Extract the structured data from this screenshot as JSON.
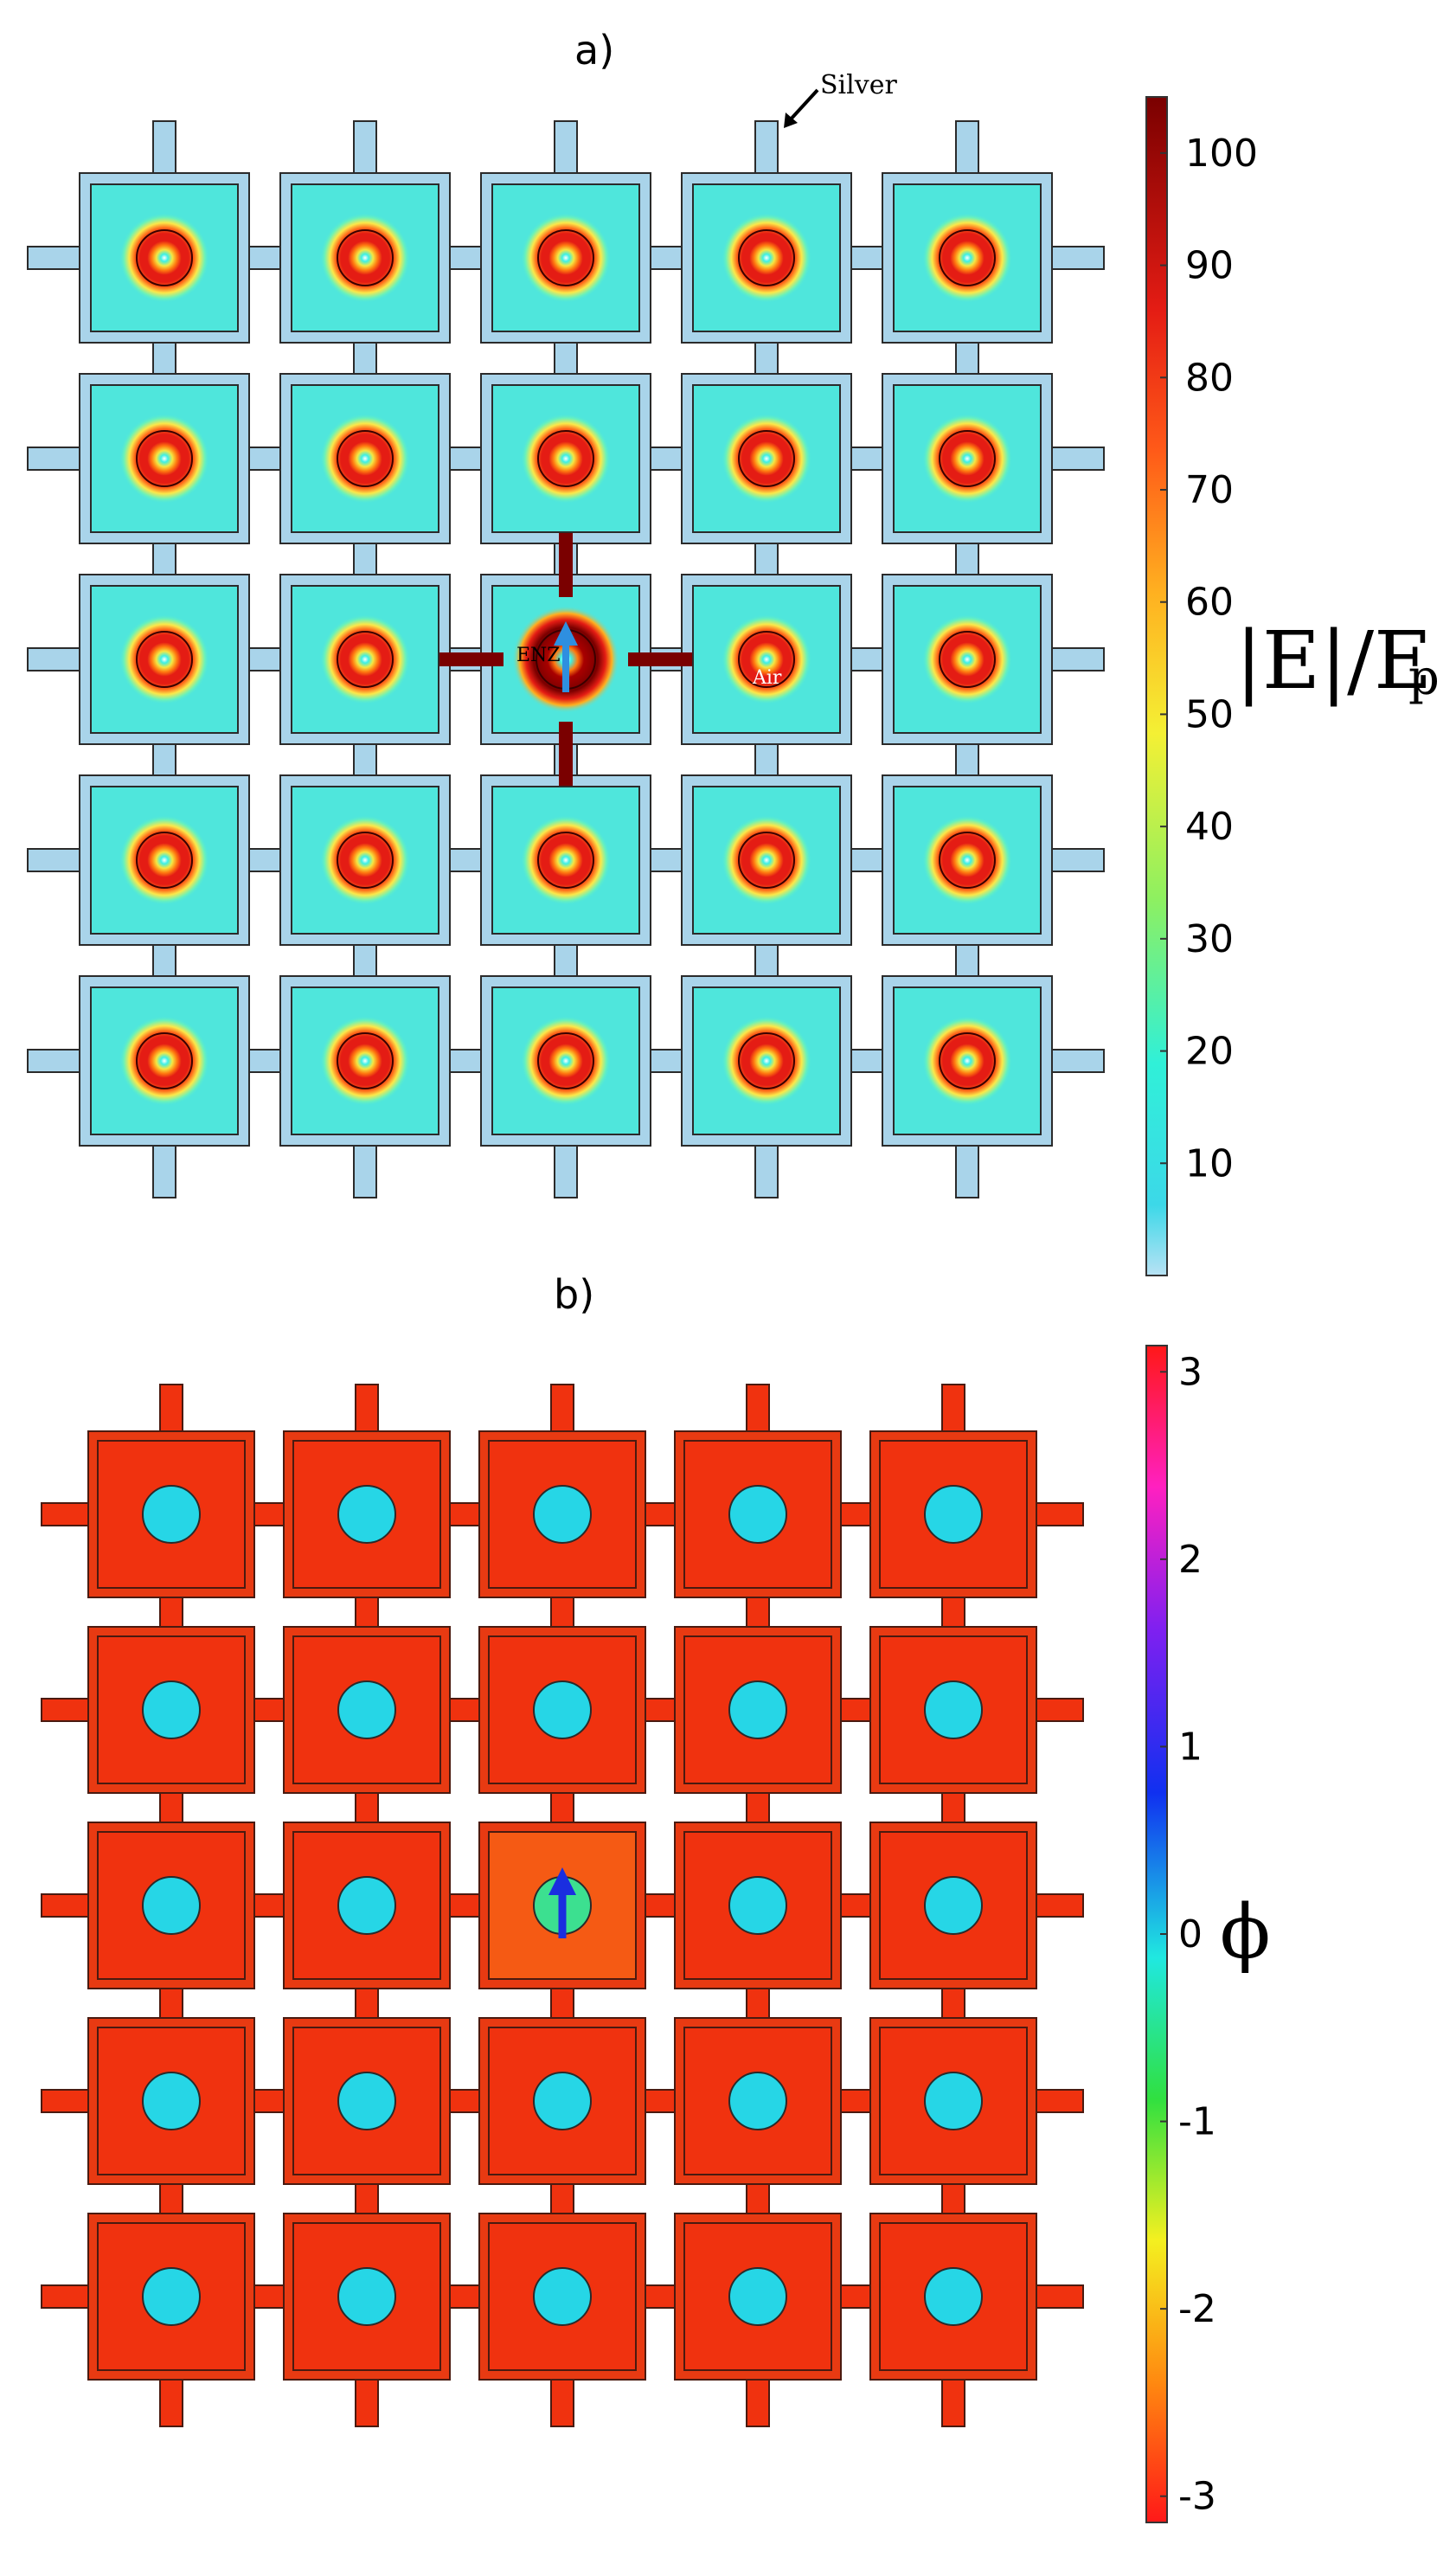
{
  "panel_a": {
    "label": "a)",
    "annotations": {
      "silver": "Silver",
      "enz": "ENZ",
      "air": "Air"
    },
    "colorbar": {
      "ticks": [
        "10",
        "20",
        "30",
        "40",
        "50",
        "60",
        "70",
        "80",
        "90",
        "100"
      ],
      "tick_values": [
        10,
        20,
        30,
        40,
        50,
        60,
        70,
        80,
        90,
        100
      ],
      "range": [
        0,
        105
      ],
      "title": "|E|/E",
      "subscript": "p"
    },
    "grid": {
      "rows": 5,
      "cols": 5,
      "center_cell": [
        2,
        2
      ]
    },
    "colors": {
      "silver": "#a9d4ea",
      "cavity": "#4fe6dc",
      "ring": "#d61a12",
      "hot": "#7a0000",
      "arrow": "#2e8fe0"
    }
  },
  "panel_b": {
    "label": "b)",
    "colorbar": {
      "ticks": [
        "3",
        "2",
        "1",
        "0",
        "-1",
        "-2",
        "-3"
      ],
      "tick_values": [
        3,
        2,
        1,
        0,
        -1,
        -2,
        -3
      ],
      "range": [
        -3.14,
        3.14
      ],
      "title": "ϕ"
    },
    "grid": {
      "rows": 5,
      "cols": 5,
      "center_cell": [
        2,
        2
      ]
    },
    "colors": {
      "field": "#f0320f",
      "circle": "#26d6e6",
      "center_circle": "#3ce090",
      "arrow": "#1a2ee0"
    }
  }
}
